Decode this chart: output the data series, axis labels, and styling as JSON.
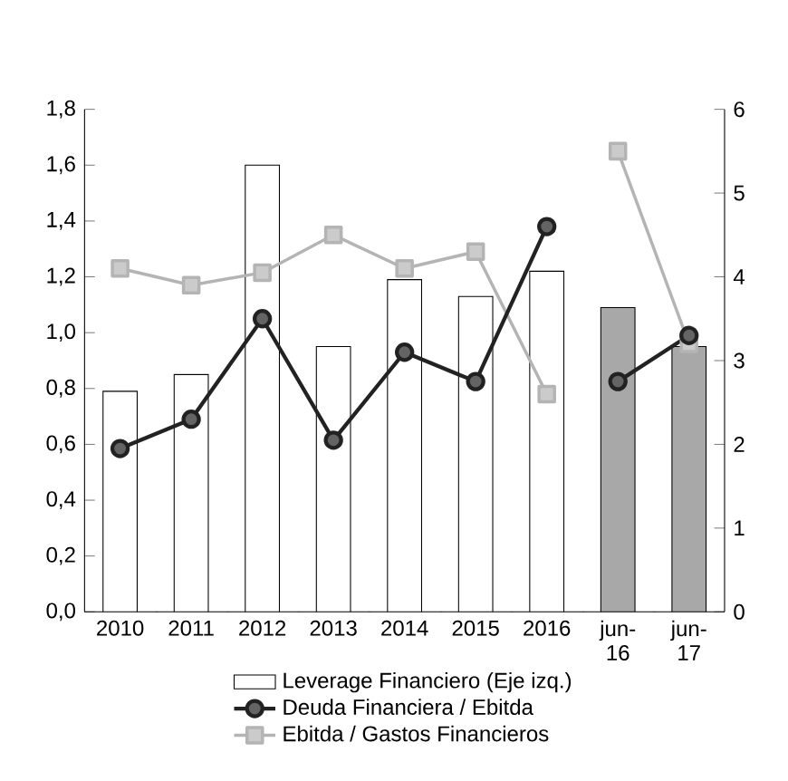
{
  "chart_data": {
    "type": "bar",
    "categories": [
      "2010",
      "2011",
      "2012",
      "2013",
      "2014",
      "2015",
      "2016",
      "jun-16",
      "jun-17"
    ],
    "series": [
      {
        "name": "Leverage Financiero (Eje izq.)",
        "colors": [
          "#ffffff",
          "#ffffff",
          "#ffffff",
          "#ffffff",
          "#ffffff",
          "#ffffff",
          "#ffffff",
          "#a8a8a8",
          "#a8a8a8"
        ],
        "values": [
          0.79,
          0.85,
          1.6,
          0.95,
          1.19,
          1.13,
          1.22,
          1.09,
          0.95
        ]
      },
      {
        "name": "Deuda Financiera / Ebitda",
        "type": "line",
        "axis": "y2",
        "color": "#222222",
        "marker": "circle",
        "values": [
          1.95,
          2.3,
          3.5,
          2.05,
          3.1,
          2.75,
          4.6,
          null,
          null
        ]
      },
      {
        "type": "line",
        "axis": "y2",
        "color": "#222222",
        "marker": "circle",
        "values": [
          null,
          null,
          null,
          null,
          null,
          null,
          null,
          2.75,
          3.3
        ]
      },
      {
        "name": "Ebitda / Gastos Financieros",
        "type": "line",
        "axis": "y2",
        "color": "#b4b4b4",
        "marker": "square",
        "values": [
          4.1,
          3.9,
          4.05,
          4.5,
          4.1,
          4.3,
          2.6,
          null,
          null
        ]
      },
      {
        "type": "line",
        "axis": "y2",
        "color": "#b4b4b4",
        "marker": "square",
        "values": [
          null,
          null,
          null,
          null,
          null,
          null,
          null,
          5.5,
          3.2
        ]
      }
    ],
    "ylim": [
      0,
      1.8
    ],
    "yticks": [
      {
        "value": 0,
        "label": "0,0"
      },
      {
        "value": 0.2,
        "label": "0,2"
      },
      {
        "value": 0.4,
        "label": "0,4"
      },
      {
        "value": 0.6,
        "label": "0,6"
      },
      {
        "value": 0.8,
        "label": "0,8"
      },
      {
        "value": 1.0,
        "label": "1,0"
      },
      {
        "value": 1.2,
        "label": "1,2"
      },
      {
        "value": 1.4,
        "label": "1,4"
      },
      {
        "value": 1.6,
        "label": "1,6"
      },
      {
        "value": 1.8,
        "label": "1,8"
      }
    ],
    "y2lim": [
      0,
      6
    ],
    "y2ticks": [
      0,
      1,
      2,
      3,
      4,
      5,
      6
    ],
    "legend": "bottom",
    "grid": false
  }
}
